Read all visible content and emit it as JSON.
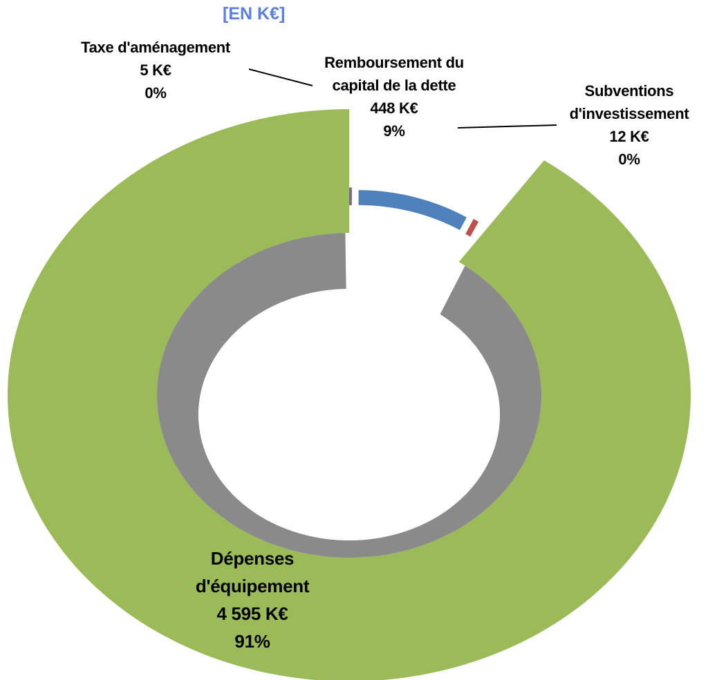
{
  "chart_data": {
    "type": "pie",
    "donut": true,
    "title": "[EN K€]",
    "categories": [
      "Taxe d'aménagement",
      "Remboursement du capital de la dette",
      "Subventions d'investissement",
      "Dépenses d'équipement"
    ],
    "values": [
      5,
      448,
      12,
      4595
    ],
    "value_labels": [
      "5   K€",
      "448   K€",
      "12   K€",
      "4 595    K€"
    ],
    "percentages": [
      0,
      9,
      0,
      91
    ],
    "percentage_labels": [
      "0%",
      "9%",
      "0%",
      "91%"
    ],
    "colors": [
      "#8064a2",
      "#4f81bd",
      "#c0504d",
      "#9bbb59"
    ]
  }
}
